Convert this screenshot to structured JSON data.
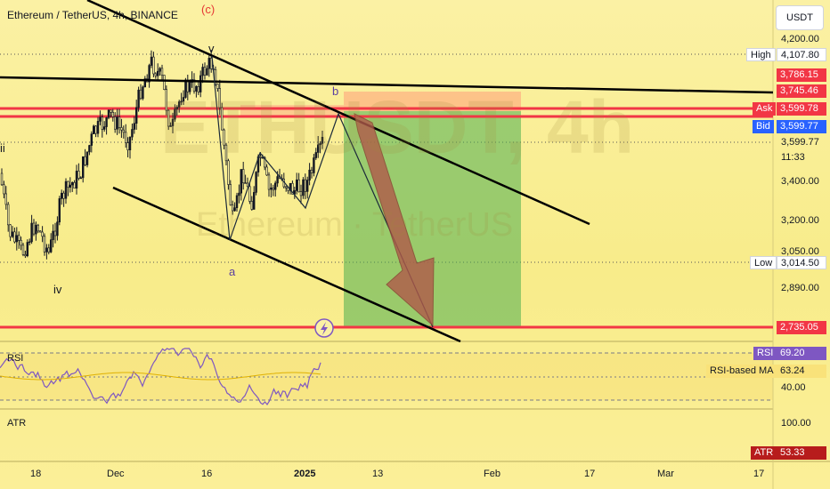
{
  "header": {
    "symbol": "Ethereum / TetherUS, 4h, BINANCE",
    "watermark_symbol": "ETHUSDT, 4h",
    "watermark_name": "Ethereum · TetherUS",
    "currency": "USDT"
  },
  "price_axis": {
    "ticks": [
      "4,200.00",
      "3,599.77",
      "11:33",
      "3,400.00",
      "3,200.00",
      "3,050.00",
      "2,890.00"
    ],
    "high": {
      "tag": "High",
      "value": "4,107.80"
    },
    "low": {
      "tag": "Low",
      "value": "3,014.50"
    },
    "levels": [
      "3,786.15",
      "3,745.46",
      "2,735.05"
    ],
    "ask": {
      "tag": "Ask",
      "value": "3,599.78"
    },
    "bid": {
      "tag": "Bid",
      "value": "3,599.77"
    }
  },
  "wave_labels": {
    "c": "(c)",
    "v": "v",
    "b": "b",
    "a": "a",
    "iv": "iv",
    "ii": "ii"
  },
  "rsi": {
    "label": "RSI",
    "tag": "RSI",
    "value": "69.20",
    "ma_tag": "RSI-based MA",
    "ma_value": "63.24",
    "tick": "40.00"
  },
  "atr": {
    "label": "ATR",
    "tag": "ATR",
    "value": "53.33",
    "tick": "100.00"
  },
  "time_axis": {
    "ticks": [
      "18",
      "Dec",
      "16",
      "2025",
      "13",
      "Feb",
      "17",
      "Mar",
      "17"
    ]
  },
  "colors": {
    "level_line": "#f23645",
    "candle": "#131722",
    "trendline": "#000000",
    "target_zone": "#4caf50",
    "projection_arrow": "#b05a4a",
    "rsi_line": "#7e57c2",
    "bid": "#2962ff",
    "ask": "#f23645"
  },
  "chart_data": {
    "type": "candlestick",
    "title": "Ethereum / TetherUS, 4h, BINANCE",
    "ylabel": "USDT",
    "ylim": [
      2735,
      4230
    ],
    "x": [
      "18",
      "Dec",
      "16",
      "2025",
      "13",
      "Feb",
      "17",
      "Mar",
      "17"
    ],
    "key_levels": {
      "high": 4107.8,
      "low": 3014.5,
      "bid": 3599.77,
      "ask": 3599.78,
      "resistance": [
        3786.15,
        3745.46
      ],
      "target": 2735.05
    },
    "rsi": {
      "last": 69.2,
      "ma": 63.24,
      "reference": 40.0
    },
    "atr": {
      "last": 53.33,
      "reference": 100.0
    },
    "grid": false,
    "legend": "none"
  }
}
